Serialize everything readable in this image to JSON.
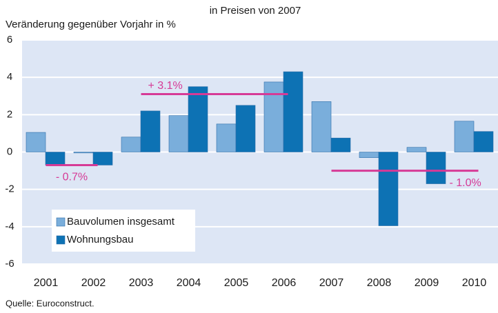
{
  "chart_data": {
    "type": "bar",
    "title": "in Preisen von 2007",
    "ylabel": "Veränderung gegenüber Vorjahr in %",
    "source": "Quelle: Euroconstruct.",
    "categories": [
      "2001",
      "2002",
      "2003",
      "2004",
      "2005",
      "2006",
      "2007",
      "2008",
      "2009",
      "2010"
    ],
    "series": [
      {
        "name": "Bauvolumen insgesamt",
        "color": "#7aaedb",
        "values": [
          1.05,
          -0.05,
          0.8,
          1.95,
          1.5,
          3.75,
          2.7,
          -0.3,
          0.25,
          1.65
        ]
      },
      {
        "name": "Wohnungsbau",
        "color": "#0d72b4",
        "values": [
          -0.7,
          -0.7,
          2.2,
          3.5,
          2.5,
          4.3,
          0.75,
          -3.95,
          -1.7,
          1.1
        ]
      }
    ],
    "annotations": [
      {
        "label": "- 0.7%",
        "value": -0.7,
        "from": "2001",
        "to": "2002"
      },
      {
        "label": "+ 3.1%",
        "value": 3.1,
        "from": "2003",
        "to": "2006"
      },
      {
        "label": "- 1.0%",
        "value": -1.0,
        "from": "2007",
        "to": "2010"
      }
    ],
    "annotation_color": "#d63a96",
    "ylim": [
      -6,
      6
    ],
    "yticks": [
      -6,
      -4,
      -2,
      0,
      2,
      4,
      6
    ],
    "grid": true,
    "legend": "lower left"
  }
}
